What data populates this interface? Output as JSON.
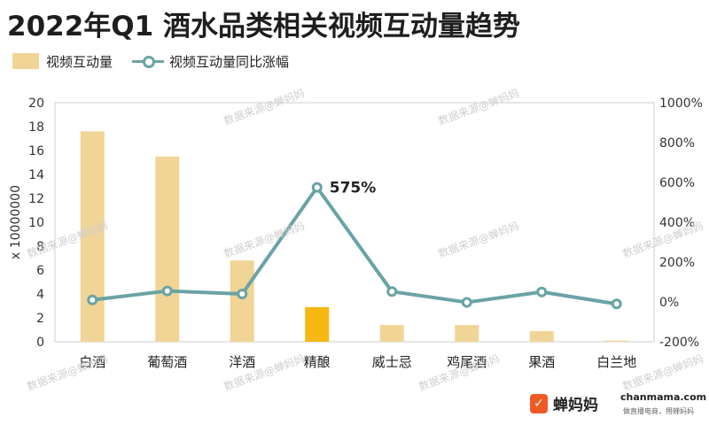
{
  "page": {
    "title": "2022年Q1 酒水品类相关视频互动量趋势",
    "legend": {
      "bar_label": "视频互动量",
      "line_label": "视频互动量同比涨幅"
    },
    "watermark_text": "数据来源@蝉妈妈",
    "footer": {
      "brand": "蝉妈妈",
      "domain": "chanmama.com",
      "slogan": "做直播电商，用蝉妈妈"
    }
  },
  "chart_data": {
    "type": "bar",
    "title": "2022年Q1 酒水品类相关视频互动量趋势",
    "categories": [
      "白酒",
      "葡萄酒",
      "洋酒",
      "精酿",
      "威士忌",
      "鸡尾酒",
      "果酒",
      "白兰地"
    ],
    "y_axis_label": "x 10000000",
    "ylim": [
      0,
      20
    ],
    "y_ticks": [
      "0",
      "2",
      "4",
      "6",
      "8",
      "10",
      "12",
      "14",
      "16",
      "18",
      "20"
    ],
    "y2lim": [
      -200,
      1000
    ],
    "y2_ticks": [
      "-200%",
      "0%",
      "200%",
      "400%",
      "600%",
      "800%",
      "1000%"
    ],
    "series": [
      {
        "name": "视频互动量",
        "kind": "bar",
        "values": [
          17.6,
          15.5,
          6.8,
          2.9,
          1.4,
          1.4,
          0.9,
          0.1
        ],
        "color": "#f0d596",
        "highlight_index": 3,
        "highlight_color": "#f7b911"
      },
      {
        "name": "视频互动量同比涨幅",
        "kind": "line",
        "axis": "right",
        "values": [
          10,
          55,
          40,
          575,
          52,
          -2,
          50,
          -10
        ],
        "color": "#6aa3a5"
      }
    ],
    "annotations": [
      {
        "index": 3,
        "text": "575%"
      }
    ],
    "grid": false,
    "legend_position": "top-left"
  }
}
